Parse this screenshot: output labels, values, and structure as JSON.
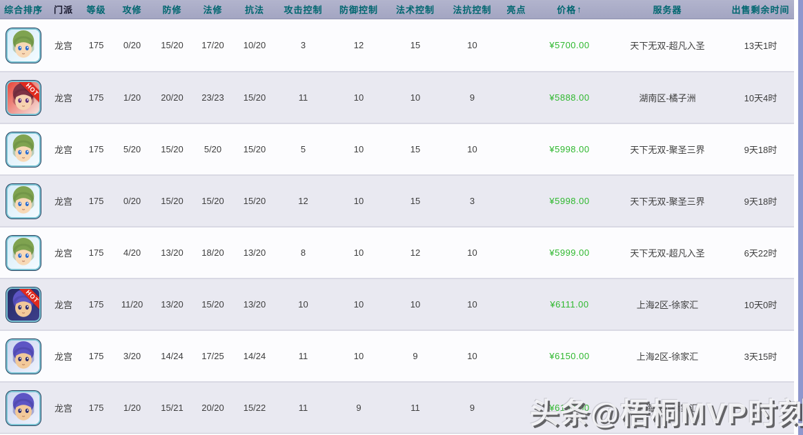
{
  "table": {
    "columns": [
      {
        "key": "sort",
        "label": "综合排序"
      },
      {
        "key": "school",
        "label": "门派",
        "dark": true
      },
      {
        "key": "level",
        "label": "等级"
      },
      {
        "key": "atk_cult",
        "label": "攻修"
      },
      {
        "key": "def_cult",
        "label": "防修"
      },
      {
        "key": "mag_cult",
        "label": "法修"
      },
      {
        "key": "resist_cult",
        "label": "抗法"
      },
      {
        "key": "atk_ctrl",
        "label": "攻击控制"
      },
      {
        "key": "def_ctrl",
        "label": "防御控制"
      },
      {
        "key": "spell_ctrl",
        "label": "法术控制"
      },
      {
        "key": "resist_ctrl",
        "label": "法抗控制"
      },
      {
        "key": "highlight",
        "label": "亮点"
      },
      {
        "key": "price",
        "label": "价格",
        "sort_arrow": "↑"
      },
      {
        "key": "server",
        "label": "服务器"
      },
      {
        "key": "time_left",
        "label": "出售剩余时间"
      }
    ],
    "rows": [
      {
        "avatar": "green-girl",
        "hot": false,
        "school": "龙宫",
        "level": "175",
        "atk_cult": "0/20",
        "def_cult": "15/20",
        "mag_cult": "17/20",
        "resist_cult": "10/20",
        "atk_ctrl": "3",
        "def_ctrl": "12",
        "spell_ctrl": "15",
        "resist_ctrl": "10",
        "highlight": "",
        "price": "¥5700.00",
        "server": "天下无双-超凡入圣",
        "time_left": "13天1时"
      },
      {
        "avatar": "red-girl",
        "hot": true,
        "school": "龙宫",
        "level": "175",
        "atk_cult": "1/20",
        "def_cult": "20/20",
        "mag_cult": "23/23",
        "resist_cult": "15/20",
        "atk_ctrl": "11",
        "def_ctrl": "10",
        "spell_ctrl": "10",
        "resist_ctrl": "9",
        "highlight": "",
        "price": "¥5888.00",
        "server": "湖南区-橘子洲",
        "time_left": "10天4时"
      },
      {
        "avatar": "green-girl",
        "hot": false,
        "school": "龙宫",
        "level": "175",
        "atk_cult": "5/20",
        "def_cult": "15/20",
        "mag_cult": "5/20",
        "resist_cult": "15/20",
        "atk_ctrl": "5",
        "def_ctrl": "10",
        "spell_ctrl": "15",
        "resist_ctrl": "10",
        "highlight": "",
        "price": "¥5998.00",
        "server": "天下无双-聚圣三界",
        "time_left": "9天18时"
      },
      {
        "avatar": "green-girl",
        "hot": false,
        "school": "龙宫",
        "level": "175",
        "atk_cult": "0/20",
        "def_cult": "15/20",
        "mag_cult": "15/20",
        "resist_cult": "15/20",
        "atk_ctrl": "12",
        "def_ctrl": "10",
        "spell_ctrl": "15",
        "resist_ctrl": "3",
        "highlight": "",
        "price": "¥5998.00",
        "server": "天下无双-聚圣三界",
        "time_left": "9天18时"
      },
      {
        "avatar": "green-girl",
        "hot": false,
        "school": "龙宫",
        "level": "175",
        "atk_cult": "4/20",
        "def_cult": "13/20",
        "mag_cult": "18/20",
        "resist_cult": "13/20",
        "atk_ctrl": "8",
        "def_ctrl": "10",
        "spell_ctrl": "12",
        "resist_ctrl": "10",
        "highlight": "",
        "price": "¥5999.00",
        "server": "天下无双-超凡入圣",
        "time_left": "6天22时"
      },
      {
        "avatar": "purple-boy-dark",
        "hot": true,
        "school": "龙宫",
        "level": "175",
        "atk_cult": "11/20",
        "def_cult": "13/20",
        "mag_cult": "15/20",
        "resist_cult": "13/20",
        "atk_ctrl": "10",
        "def_ctrl": "10",
        "spell_ctrl": "10",
        "resist_ctrl": "10",
        "highlight": "",
        "price": "¥6111.00",
        "server": "上海2区-徐家汇",
        "time_left": "10天0时"
      },
      {
        "avatar": "purple-boy",
        "hot": false,
        "school": "龙宫",
        "level": "175",
        "atk_cult": "3/20",
        "def_cult": "14/24",
        "mag_cult": "17/25",
        "resist_cult": "14/24",
        "atk_ctrl": "11",
        "def_ctrl": "10",
        "spell_ctrl": "9",
        "resist_ctrl": "10",
        "highlight": "",
        "price": "¥6150.00",
        "server": "上海2区-徐家汇",
        "time_left": "3天15时"
      },
      {
        "avatar": "purple-boy",
        "hot": false,
        "school": "龙宫",
        "level": "175",
        "atk_cult": "1/20",
        "def_cult": "15/21",
        "mag_cult": "20/20",
        "resist_cult": "15/22",
        "atk_ctrl": "11",
        "def_ctrl": "9",
        "spell_ctrl": "11",
        "resist_ctrl": "9",
        "highlight": "",
        "price": "¥6150.00",
        "server": "上海2区-徐家汇",
        "time_left": ""
      }
    ]
  },
  "badges": {
    "hot": "HOT"
  },
  "watermark": {
    "text": "头条@梧桐MVP时刻"
  },
  "colors": {
    "header_bg": "#a8aac7",
    "header_text": "#00666f",
    "price_green": "#2eb82e",
    "row_alt_bg": "#e9e9f1",
    "hot_red": "#e02a1e",
    "scrollbar_blue": "#8e97ce"
  }
}
